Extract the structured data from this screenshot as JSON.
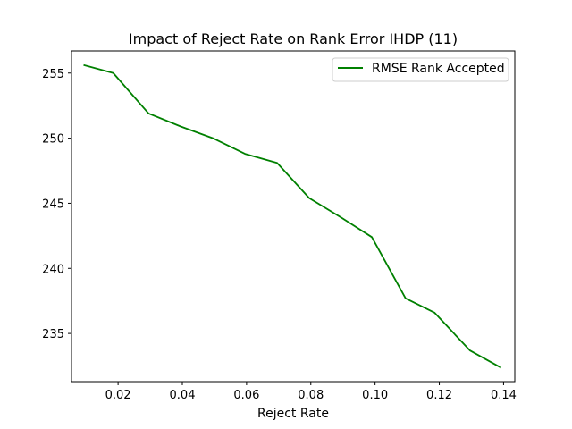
{
  "chart_data": {
    "type": "line",
    "title": "Impact of Reject Rate on Rank Error IHDP (11)",
    "xlabel": "Reject Rate",
    "ylabel": "",
    "xlim": [
      0.0055,
      0.1435
    ],
    "ylim": [
      231.3,
      256.7
    ],
    "xticks": [
      0.02,
      0.04,
      0.06,
      0.08,
      0.1,
      0.12,
      0.14
    ],
    "xtick_labels": [
      "0.02",
      "0.04",
      "0.06",
      "0.08",
      "0.10",
      "0.12",
      "0.14"
    ],
    "yticks": [
      235,
      240,
      245,
      250,
      255
    ],
    "ytick_labels": [
      "235",
      "240",
      "245",
      "250",
      "255"
    ],
    "grid": false,
    "legend_position": "top-right",
    "series": [
      {
        "name": "RMSE Rank Accepted",
        "color": "#008000",
        "x": [
          0.0095,
          0.0185,
          0.0295,
          0.0395,
          0.0495,
          0.0595,
          0.0695,
          0.0795,
          0.0895,
          0.099,
          0.1095,
          0.1185,
          0.1295,
          0.139
        ],
        "y": [
          255.6,
          255.0,
          251.9,
          250.9,
          250.0,
          248.8,
          248.1,
          245.4,
          243.9,
          242.4,
          237.7,
          236.6,
          233.7,
          232.4
        ]
      }
    ]
  }
}
